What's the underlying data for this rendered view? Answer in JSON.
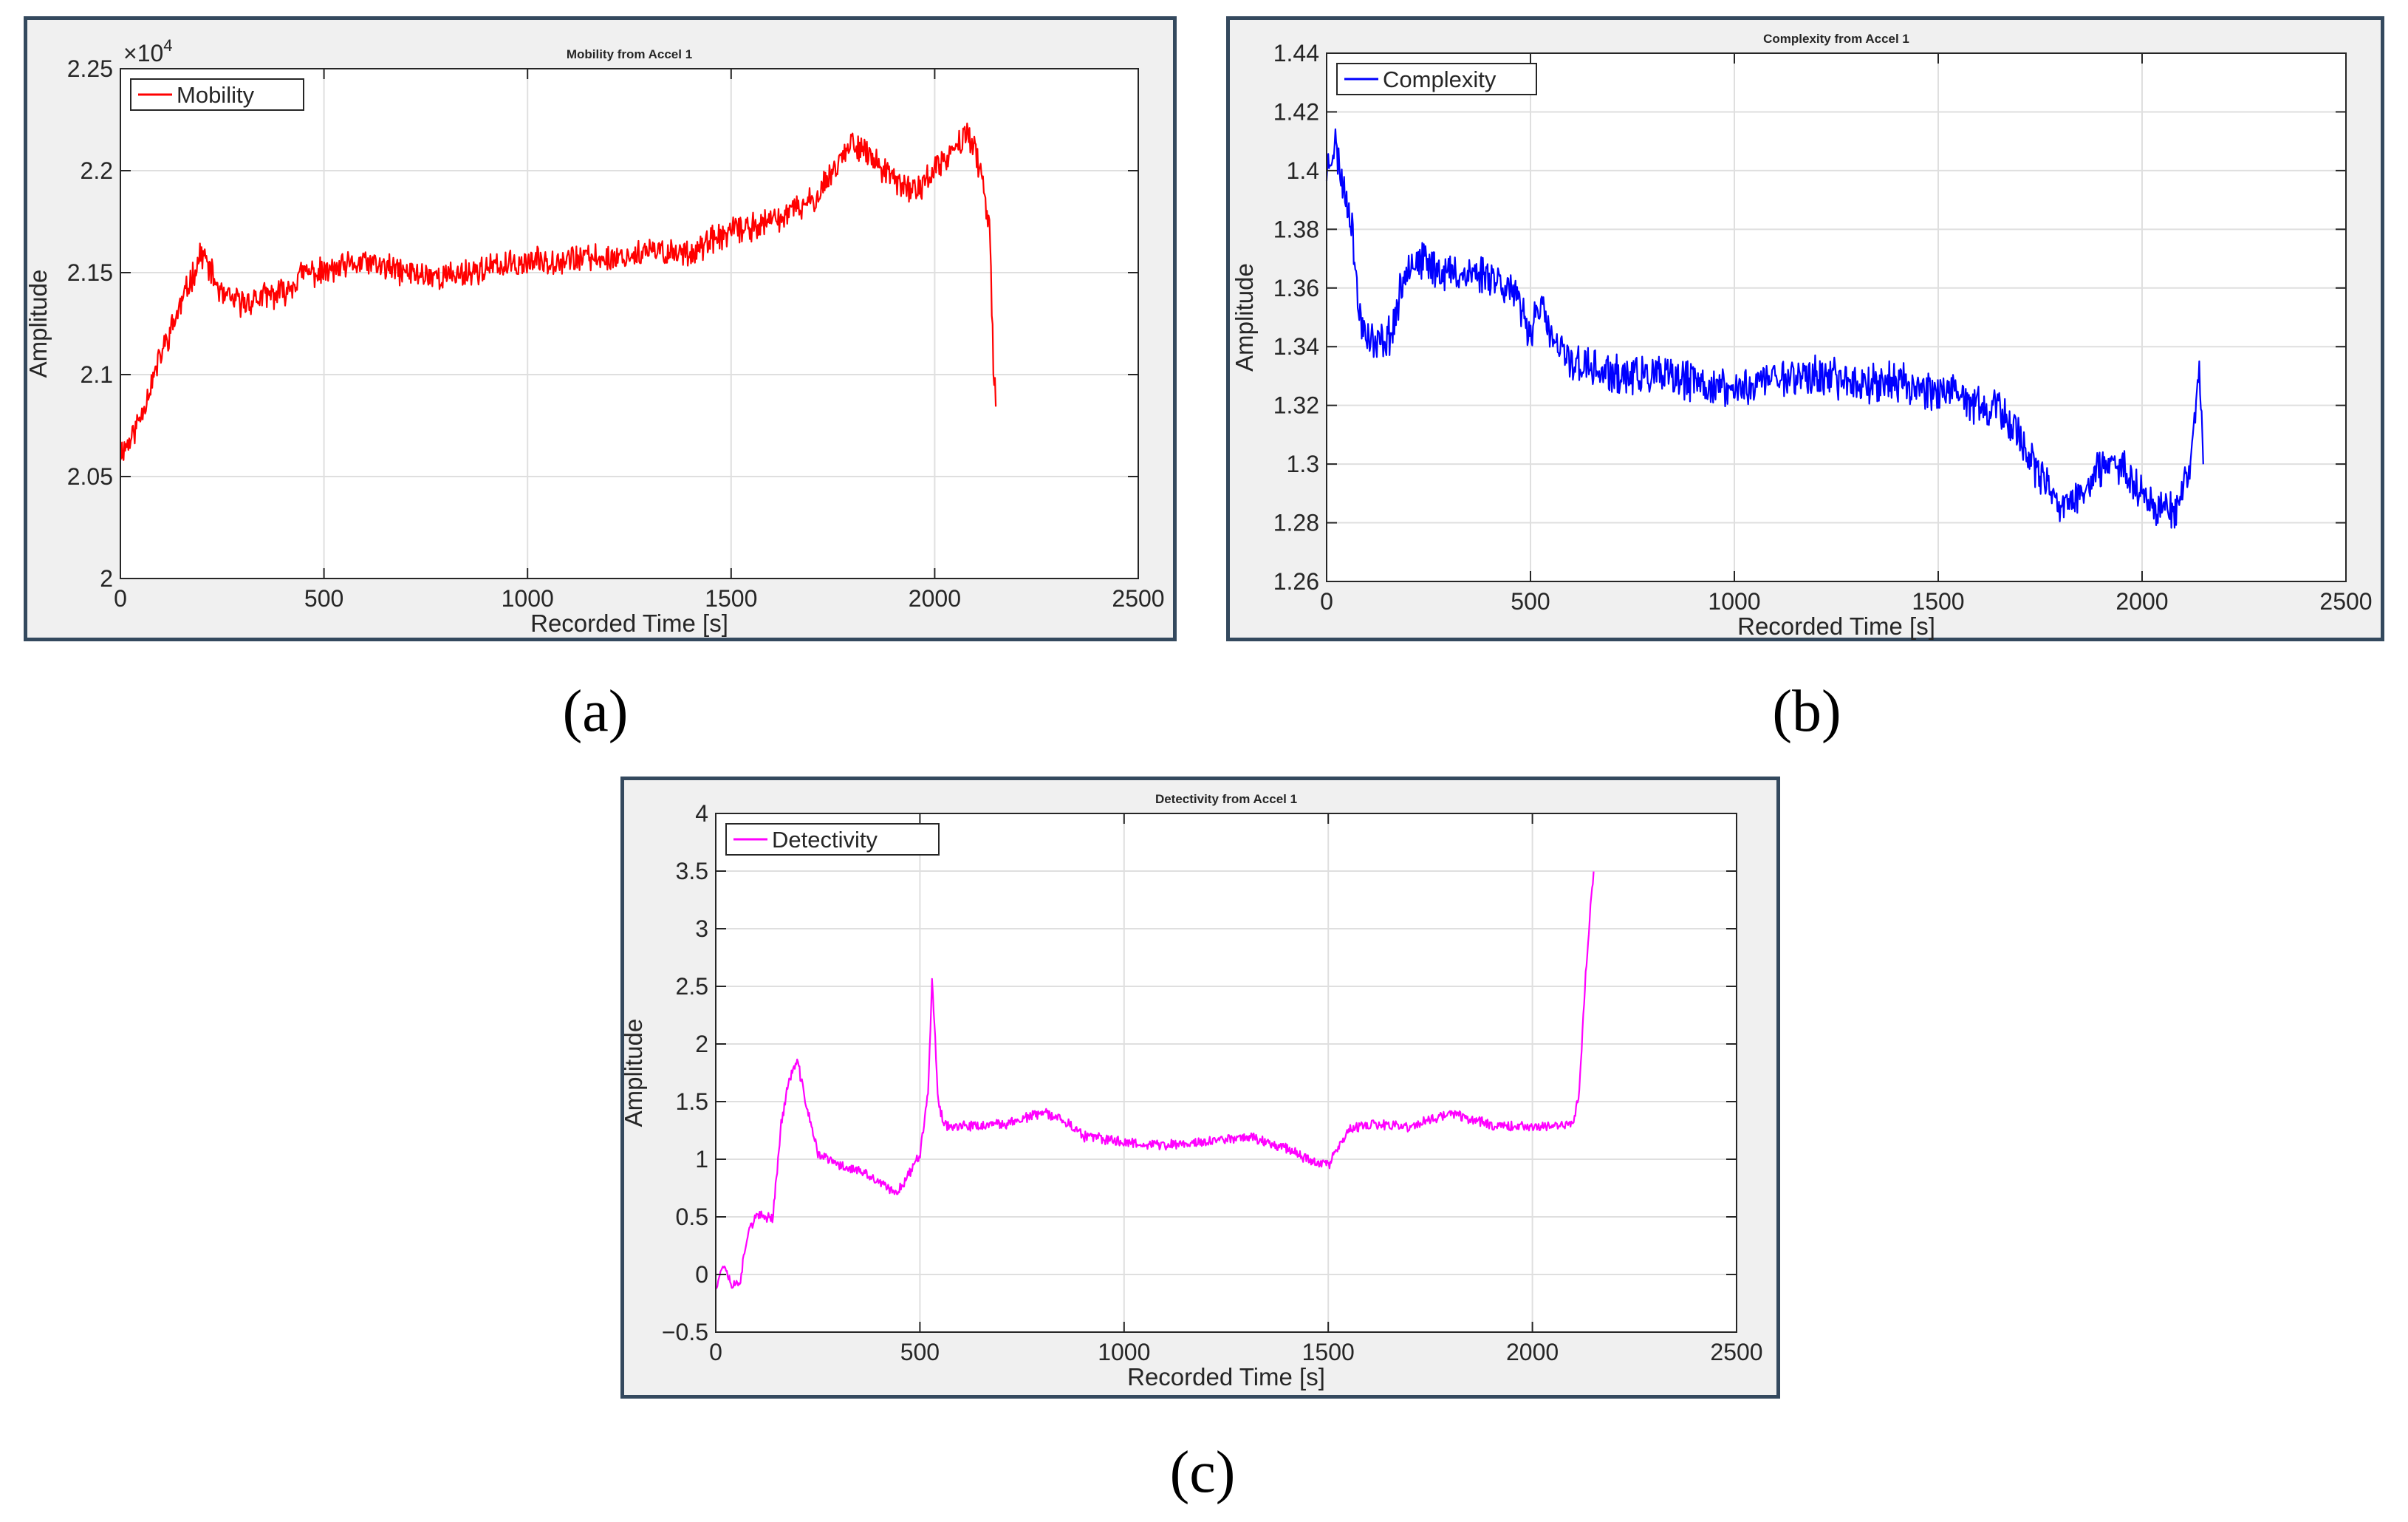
{
  "captions": {
    "a": "(a)",
    "b": "(b)",
    "c": "(c)"
  },
  "chart_data": [
    {
      "type": "line",
      "title": "Mobility from Accel 1",
      "xlabel": "Recorded Time [s]",
      "ylabel": "Amplitude",
      "exponent_base": "×10",
      "exponent_power": "4",
      "xlim": [
        0,
        2500
      ],
      "ylim": [
        2.0,
        2.25
      ],
      "xticks": [
        0,
        500,
        1000,
        1500,
        2000,
        2500
      ],
      "xtick_labels": [
        "0",
        "500",
        "1000",
        "1500",
        "2000",
        "2500"
      ],
      "yticks": [
        2.0,
        2.05,
        2.1,
        2.15,
        2.2,
        2.25
      ],
      "ytick_labels": [
        "2",
        "2.05",
        "2.1",
        "2.15",
        "2.2",
        "2.25"
      ],
      "grid": true,
      "legend_position": "top-left",
      "series": [
        {
          "name": "Mobility",
          "color": "#ff0000",
          "x": [
            0,
            25,
            50,
            75,
            100,
            150,
            200,
            250,
            300,
            350,
            400,
            450,
            500,
            600,
            700,
            800,
            900,
            1000,
            1100,
            1200,
            1300,
            1400,
            1500,
            1600,
            1700,
            1750,
            1800,
            1850,
            1900,
            1950,
            2000,
            2050,
            2080,
            2100,
            2120,
            2135,
            2145,
            2150
          ],
          "y": [
            2.062,
            2.068,
            2.08,
            2.095,
            2.11,
            2.135,
            2.16,
            2.138,
            2.135,
            2.138,
            2.14,
            2.15,
            2.15,
            2.155,
            2.15,
            2.148,
            2.152,
            2.155,
            2.157,
            2.157,
            2.16,
            2.16,
            2.17,
            2.175,
            2.185,
            2.2,
            2.215,
            2.205,
            2.195,
            2.19,
            2.2,
            2.21,
            2.22,
            2.21,
            2.19,
            2.17,
            2.1,
            2.09
          ],
          "noise": 0.006,
          "seed": 11
        }
      ]
    },
    {
      "type": "line",
      "title": "Complexity from Accel 1",
      "xlabel": "Recorded Time [s]",
      "ylabel": "Amplitude",
      "xlim": [
        0,
        2500
      ],
      "ylim": [
        1.26,
        1.44
      ],
      "xticks": [
        0,
        500,
        1000,
        1500,
        2000,
        2500
      ],
      "xtick_labels": [
        "0",
        "500",
        "1000",
        "1500",
        "2000",
        "2500"
      ],
      "yticks": [
        1.26,
        1.28,
        1.3,
        1.32,
        1.34,
        1.36,
        1.38,
        1.4,
        1.42,
        1.44
      ],
      "ytick_labels": [
        "1.26",
        "1.28",
        "1.3",
        "1.32",
        "1.34",
        "1.36",
        "1.38",
        "1.4",
        "1.42",
        "1.44"
      ],
      "grid": true,
      "legend_position": "top-left",
      "series": [
        {
          "name": "Complexity",
          "color": "#0000ff",
          "x": [
            0,
            20,
            40,
            60,
            80,
            120,
            160,
            200,
            250,
            300,
            350,
            400,
            450,
            500,
            520,
            560,
            600,
            700,
            800,
            900,
            1000,
            1100,
            1200,
            1300,
            1400,
            1500,
            1600,
            1650,
            1700,
            1750,
            1800,
            1850,
            1900,
            1950,
            2000,
            2050,
            2080,
            2100,
            2120,
            2140,
            2150
          ],
          "y": [
            1.4,
            1.41,
            1.395,
            1.385,
            1.35,
            1.34,
            1.345,
            1.37,
            1.368,
            1.365,
            1.365,
            1.365,
            1.36,
            1.345,
            1.355,
            1.34,
            1.335,
            1.33,
            1.33,
            1.328,
            1.325,
            1.33,
            1.33,
            1.328,
            1.328,
            1.325,
            1.32,
            1.318,
            1.31,
            1.295,
            1.285,
            1.29,
            1.298,
            1.3,
            1.29,
            1.285,
            1.285,
            1.29,
            1.3,
            1.335,
            1.3
          ],
          "noise": 0.006,
          "seed": 23
        }
      ]
    },
    {
      "type": "line",
      "title": "Detectivity from Accel 1",
      "xlabel": "Recorded Time [s]",
      "ylabel": "Amplitude",
      "xlim": [
        0,
        2500
      ],
      "ylim": [
        -0.5,
        4
      ],
      "xticks": [
        0,
        500,
        1000,
        1500,
        2000,
        2500
      ],
      "xtick_labels": [
        "0",
        "500",
        "1000",
        "1500",
        "2000",
        "2500"
      ],
      "yticks": [
        -0.5,
        0,
        0.5,
        1,
        1.5,
        2,
        2.5,
        3,
        3.5,
        4
      ],
      "ytick_labels": [
        "−0.5",
        "0",
        "0.5",
        "1",
        "1.5",
        "2",
        "2.5",
        "3",
        "3.5",
        "4"
      ],
      "grid": true,
      "legend_position": "top-left",
      "series": [
        {
          "name": "Detectivity",
          "color": "#ff00ff",
          "x": [
            0,
            20,
            40,
            60,
            80,
            100,
            140,
            160,
            180,
            200,
            220,
            250,
            300,
            350,
            400,
            440,
            470,
            500,
            520,
            530,
            545,
            560,
            600,
            700,
            800,
            850,
            900,
            1000,
            1100,
            1200,
            1300,
            1400,
            1450,
            1500,
            1550,
            1600,
            1700,
            1800,
            1900,
            2000,
            2100,
            2115,
            2130,
            2145,
            2150
          ],
          "y": [
            -0.1,
            0.1,
            -0.1,
            -0.05,
            0.4,
            0.5,
            0.5,
            1.3,
            1.7,
            1.85,
            1.5,
            1.05,
            0.95,
            0.9,
            0.8,
            0.7,
            0.85,
            1.05,
            1.6,
            2.55,
            1.5,
            1.3,
            1.28,
            1.3,
            1.4,
            1.35,
            1.2,
            1.15,
            1.12,
            1.15,
            1.2,
            1.1,
            1.0,
            0.95,
            1.25,
            1.3,
            1.28,
            1.4,
            1.3,
            1.28,
            1.3,
            1.6,
            2.6,
            3.3,
            3.45
          ],
          "noise": 0.04,
          "seed": 37
        }
      ]
    }
  ]
}
